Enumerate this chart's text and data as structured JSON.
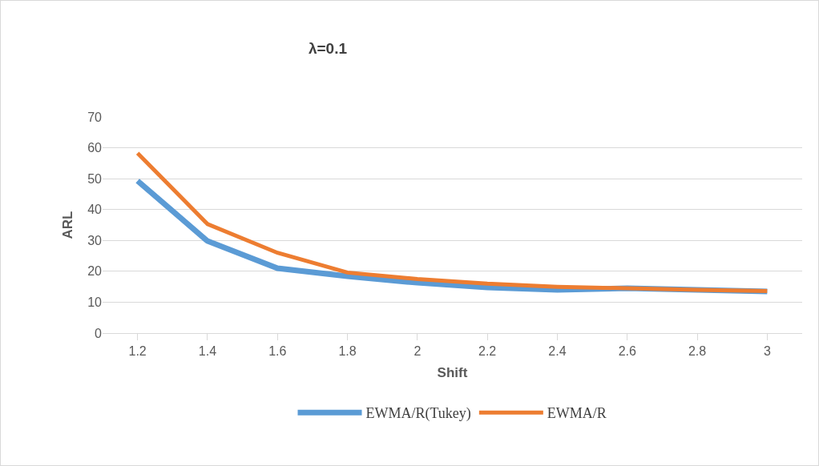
{
  "chart_data": {
    "type": "line",
    "title": "λ=0.1",
    "xlabel": "Shift",
    "ylabel": "ARL",
    "categories": [
      "1.2",
      "1.4",
      "1.6",
      "1.8",
      "2",
      "2.2",
      "2.4",
      "2.6",
      "2.8",
      "3"
    ],
    "series": [
      {
        "name": "EWMA/R(Tukey)",
        "color": "#5b9bd5",
        "values": [
          49.3,
          29.8,
          21,
          18.4,
          16.3,
          14.8,
          14,
          14.5,
          14,
          13.5
        ]
      },
      {
        "name": "EWMA/R",
        "color": "#ed7d31",
        "values": [
          58.3,
          35.3,
          26,
          19.6,
          17.5,
          16,
          15,
          14.5,
          14,
          13.6
        ]
      }
    ],
    "ylim": [
      0,
      70
    ],
    "yticks": [
      0,
      10,
      20,
      30,
      40,
      50,
      60,
      70
    ],
    "grid": "y",
    "legend": "bottom",
    "marker": "none",
    "line_style": "solid"
  }
}
